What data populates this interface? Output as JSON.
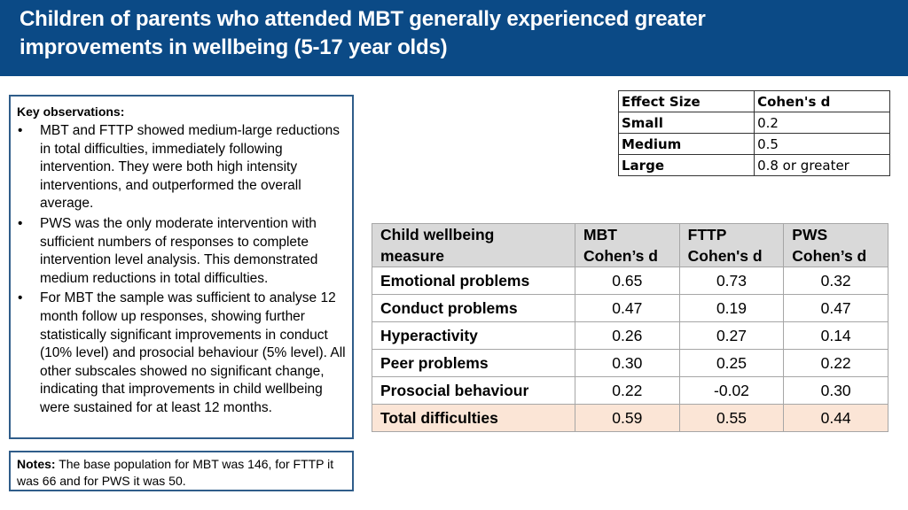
{
  "header": {
    "title_line1": "Children of parents who attended MBT generally experienced greater",
    "title_line2": "improvements in wellbeing (5-17 year olds)",
    "background_color": "#0b4a86"
  },
  "observations": {
    "title": "Key observations:",
    "items": [
      "MBT and FTTP showed medium-large reductions in total difficulties, immediately following intervention. They were both high intensity interventions, and outperformed the overall average.",
      "PWS was the only moderate intervention with sufficient numbers of responses to complete intervention level analysis. This demonstrated medium reductions in total difficulties.",
      "For MBT the sample was sufficient to analyse 12 month follow up responses, showing further statistically significant improvements in conduct (10% level) and prosocial behaviour (5% level). All other subscales showed no significant change, indicating that improvements in child wellbeing were sustained for at least 12 months."
    ]
  },
  "notes": {
    "label": "Notes:",
    "text": " The base population for MBT was 146, for FTTP it was 66 and for PWS it was 50."
  },
  "effect_size_table": {
    "headers": [
      "Effect Size",
      "Cohen's d"
    ],
    "rows": [
      [
        "Small",
        "0.2"
      ],
      [
        "Medium",
        "0.5"
      ],
      [
        "Large",
        "0.8 or greater"
      ]
    ]
  },
  "wellbeing_table": {
    "headers": [
      [
        "Child wellbeing",
        "measure"
      ],
      [
        "MBT",
        "Cohen’s d"
      ],
      [
        "FTTP",
        "Cohen's d"
      ],
      [
        "PWS",
        "Cohen’s d"
      ]
    ],
    "rows": [
      [
        "Emotional problems",
        "0.65",
        "0.73",
        "0.32"
      ],
      [
        "Conduct problems",
        "0.47",
        "0.19",
        "0.47"
      ],
      [
        "Hyperactivity",
        "0.26",
        "0.27",
        "0.14"
      ],
      [
        "Peer problems",
        "0.30",
        "0.25",
        "0.22"
      ],
      [
        "Prosocial behaviour",
        "0.22",
        "-0.02",
        "0.30"
      ],
      [
        "Total difficulties",
        "0.59",
        "0.55",
        "0.44"
      ]
    ],
    "header_color": "#d9d9d9",
    "highlight_color": "#fbe5d6"
  }
}
